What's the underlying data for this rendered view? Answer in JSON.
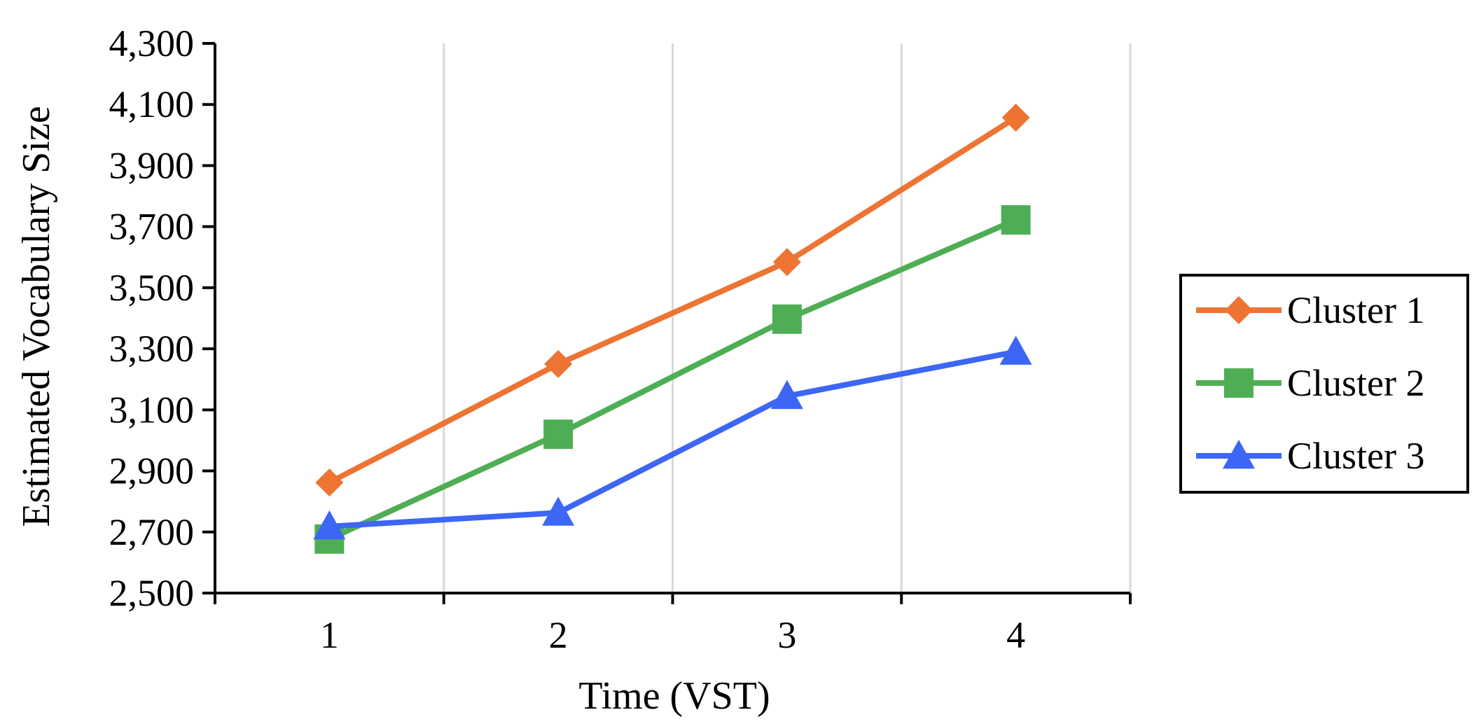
{
  "chart_data": {
    "type": "line",
    "title": "",
    "xlabel": "Time (VST)",
    "ylabel": "Estimated Vocabulary Size",
    "categories": [
      "1",
      "2",
      "3",
      "4"
    ],
    "ylim": [
      2500,
      4300
    ],
    "yticks": [
      2500,
      2700,
      2900,
      3100,
      3300,
      3500,
      3700,
      3900,
      4100,
      4300
    ],
    "ytick_labels": [
      "2,500",
      "2,700",
      "2,900",
      "3,100",
      "3,300",
      "3,500",
      "3,700",
      "3,900",
      "4,100",
      "4,300"
    ],
    "grid": "vertical",
    "legend_position": "right",
    "series": [
      {
        "name": "Cluster 1",
        "values": [
          2862,
          3250,
          3584,
          4057
        ],
        "color": "#ED7433",
        "marker": "diamond"
      },
      {
        "name": "Cluster 2",
        "values": [
          2677,
          3020,
          3397,
          3722
        ],
        "color": "#4FAE55",
        "marker": "square"
      },
      {
        "name": "Cluster 3",
        "values": [
          2718,
          2763,
          3145,
          3290
        ],
        "color": "#3D66F5",
        "marker": "triangle"
      }
    ]
  }
}
